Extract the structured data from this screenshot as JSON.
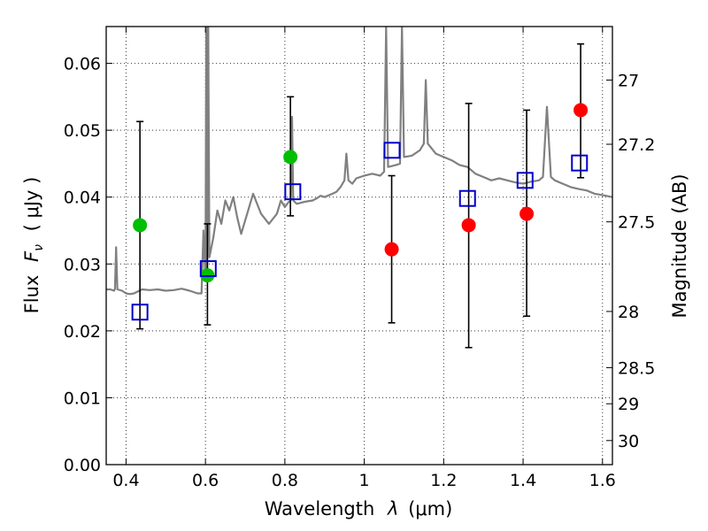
{
  "chart_data": {
    "type": "scatter",
    "xlabel": "Wavelength λ (μm)",
    "ylabel": "Flux F_ν (μJy)",
    "y2label": "Magnitude (AB)",
    "xlim": [
      0.35,
      1.625
    ],
    "ylim": [
      0.0,
      0.0655
    ],
    "grid": true,
    "x_ticks": [
      0.4,
      0.6,
      0.8,
      1.0,
      1.2,
      1.4,
      1.6
    ],
    "x_tick_labels": [
      "0.4",
      "0.6",
      "0.8",
      "1",
      "1.2",
      "1.4",
      "1.6"
    ],
    "y_ticks": [
      0.0,
      0.01,
      0.02,
      0.03,
      0.04,
      0.05,
      0.06
    ],
    "y_tick_labels": [
      "0.00",
      "0.01",
      "0.02",
      "0.03",
      "0.04",
      "0.05",
      "0.06"
    ],
    "y2_ticks": [
      {
        "label": "27",
        "flux": 0.0575
      },
      {
        "label": "27.2",
        "flux": 0.0479
      },
      {
        "label": "27.5",
        "flux": 0.0363
      },
      {
        "label": "28",
        "flux": 0.0229
      },
      {
        "label": "28.5",
        "flux": 0.0145
      },
      {
        "label": "29",
        "flux": 0.0091
      },
      {
        "label": "30",
        "flux": 0.0036
      }
    ],
    "colors": {
      "model": "#808080",
      "errorbar": "#000000",
      "green": "#00bf00",
      "red": "#ff0000",
      "square": "#0000cc"
    },
    "series": [
      {
        "kind": "model-spectrum",
        "points": [
          [
            0.35,
            0.0262
          ],
          [
            0.36,
            0.0262
          ],
          [
            0.37,
            0.026
          ],
          [
            0.372,
            0.0263
          ],
          [
            0.375,
            0.0325
          ],
          [
            0.378,
            0.0262
          ],
          [
            0.39,
            0.026
          ],
          [
            0.4,
            0.0256
          ],
          [
            0.41,
            0.0255
          ],
          [
            0.42,
            0.0256
          ],
          [
            0.43,
            0.0259
          ],
          [
            0.44,
            0.0262
          ],
          [
            0.46,
            0.0261
          ],
          [
            0.48,
            0.0262
          ],
          [
            0.5,
            0.026
          ],
          [
            0.52,
            0.0261
          ],
          [
            0.54,
            0.0263
          ],
          [
            0.56,
            0.026
          ],
          [
            0.58,
            0.0256
          ],
          [
            0.59,
            0.0256
          ],
          [
            0.595,
            0.035
          ],
          [
            0.6,
            0.0275
          ],
          [
            0.602,
            0.0655
          ],
          [
            0.604,
            0.028
          ],
          [
            0.607,
            0.0655
          ],
          [
            0.61,
            0.031
          ],
          [
            0.62,
            0.034
          ],
          [
            0.63,
            0.038
          ],
          [
            0.64,
            0.036
          ],
          [
            0.65,
            0.0395
          ],
          [
            0.66,
            0.038
          ],
          [
            0.67,
            0.04
          ],
          [
            0.68,
            0.037
          ],
          [
            0.69,
            0.0345
          ],
          [
            0.7,
            0.0365
          ],
          [
            0.72,
            0.0405
          ],
          [
            0.74,
            0.0375
          ],
          [
            0.76,
            0.036
          ],
          [
            0.78,
            0.0375
          ],
          [
            0.79,
            0.0395
          ],
          [
            0.8,
            0.0385
          ],
          [
            0.81,
            0.0393
          ],
          [
            0.815,
            0.0395
          ],
          [
            0.818,
            0.052
          ],
          [
            0.821,
            0.0395
          ],
          [
            0.83,
            0.039
          ],
          [
            0.85,
            0.0393
          ],
          [
            0.87,
            0.0395
          ],
          [
            0.88,
            0.0398
          ],
          [
            0.89,
            0.0402
          ],
          [
            0.9,
            0.04
          ],
          [
            0.92,
            0.0405
          ],
          [
            0.93,
            0.0408
          ],
          [
            0.94,
            0.0415
          ],
          [
            0.95,
            0.0425
          ],
          [
            0.955,
            0.0465
          ],
          [
            0.96,
            0.0425
          ],
          [
            0.97,
            0.042
          ],
          [
            0.98,
            0.0428
          ],
          [
            1.0,
            0.0432
          ],
          [
            1.02,
            0.0435
          ],
          [
            1.04,
            0.0432
          ],
          [
            1.05,
            0.0438
          ],
          [
            1.055,
            0.0655
          ],
          [
            1.06,
            0.0445
          ],
          [
            1.08,
            0.0448
          ],
          [
            1.09,
            0.045
          ],
          [
            1.095,
            0.0655
          ],
          [
            1.1,
            0.046
          ],
          [
            1.12,
            0.0462
          ],
          [
            1.14,
            0.047
          ],
          [
            1.15,
            0.048
          ],
          [
            1.155,
            0.0575
          ],
          [
            1.16,
            0.048
          ],
          [
            1.18,
            0.0465
          ],
          [
            1.2,
            0.046
          ],
          [
            1.22,
            0.0455
          ],
          [
            1.24,
            0.0448
          ],
          [
            1.26,
            0.0445
          ],
          [
            1.28,
            0.0435
          ],
          [
            1.3,
            0.043
          ],
          [
            1.32,
            0.0425
          ],
          [
            1.34,
            0.0428
          ],
          [
            1.36,
            0.0425
          ],
          [
            1.38,
            0.0422
          ],
          [
            1.4,
            0.042
          ],
          [
            1.42,
            0.0423
          ],
          [
            1.44,
            0.0425
          ],
          [
            1.45,
            0.043
          ],
          [
            1.46,
            0.0535
          ],
          [
            1.47,
            0.043
          ],
          [
            1.48,
            0.0425
          ],
          [
            1.5,
            0.042
          ],
          [
            1.52,
            0.0415
          ],
          [
            1.54,
            0.0412
          ],
          [
            1.56,
            0.041
          ],
          [
            1.58,
            0.0405
          ],
          [
            1.6,
            0.0403
          ],
          [
            1.625,
            0.04
          ]
        ]
      },
      {
        "kind": "errorbar-points",
        "points": [
          {
            "x": 0.435,
            "lo": 0.0203,
            "hi": 0.0513
          },
          {
            "x": 0.605,
            "lo": 0.0209,
            "hi": 0.036
          },
          {
            "x": 0.814,
            "lo": 0.0372,
            "hi": 0.055
          },
          {
            "x": 1.069,
            "lo": 0.0212,
            "hi": 0.0432
          },
          {
            "x": 1.263,
            "lo": 0.0175,
            "hi": 0.054
          },
          {
            "x": 1.409,
            "lo": 0.0222,
            "hi": 0.053
          },
          {
            "x": 1.545,
            "lo": 0.0429,
            "hi": 0.0629
          }
        ]
      },
      {
        "kind": "green-circles",
        "points": [
          [
            0.435,
            0.0358
          ],
          [
            0.605,
            0.0283
          ],
          [
            0.814,
            0.046
          ]
        ]
      },
      {
        "kind": "red-circles",
        "points": [
          [
            1.069,
            0.0322
          ],
          [
            1.263,
            0.0358
          ],
          [
            1.409,
            0.0375
          ],
          [
            1.545,
            0.053
          ]
        ]
      },
      {
        "kind": "blue-squares",
        "points": [
          [
            0.435,
            0.0228
          ],
          [
            0.607,
            0.0293
          ],
          [
            0.82,
            0.0408
          ],
          [
            1.07,
            0.047
          ],
          [
            1.26,
            0.0398
          ],
          [
            1.405,
            0.0425
          ],
          [
            1.542,
            0.0451
          ]
        ]
      }
    ]
  }
}
